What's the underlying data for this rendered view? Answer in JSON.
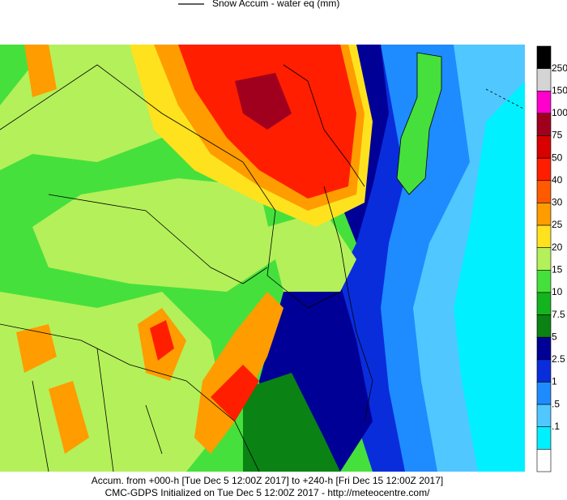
{
  "legend_label": "Snow Accum - water eq (mm)",
  "colorbar": {
    "colors": [
      "#000000",
      "#d4d4d4",
      "#ff00cc",
      "#a0001e",
      "#d80000",
      "#ff1e00",
      "#ff5a00",
      "#ff9c00",
      "#ffe21e",
      "#b4f05a",
      "#46e03c",
      "#14b41e",
      "#0a8214",
      "#000096",
      "#0a2ddc",
      "#1e8cff",
      "#50c8ff",
      "#00f0ff",
      "#ffffff"
    ],
    "labels": [
      "250",
      "150",
      "100",
      "75",
      "50",
      "40",
      "30",
      "25",
      "20",
      "15",
      "10",
      "7.5",
      "5",
      "2.5",
      "1",
      ".5",
      ".1"
    ]
  },
  "footer": [
    "Accum. from +000-h [Tue Dec 5 12:00Z 2017] to +240-h [Fri Dec 15 12:00Z 2017]",
    "CMC-GDPS Initialized on Tue Dec 5 12:00Z 2017 - http://meteocentre.com/"
  ]
}
